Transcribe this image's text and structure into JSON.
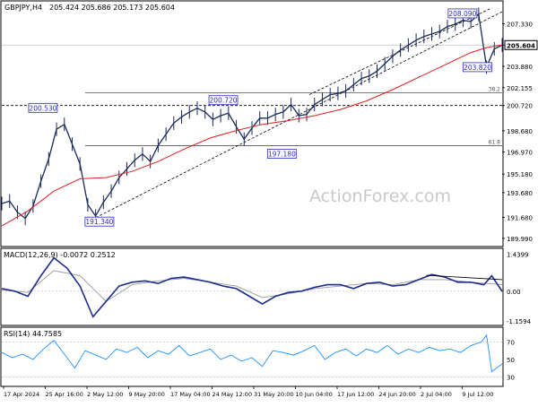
{
  "chart_data": {
    "type": "candlestick",
    "symbol_label": "GBPJPY,H4",
    "ohlc_text": "205.424 205.686 205.173 205.604",
    "watermark": "ActionForex.com",
    "price_axis": {
      "range": [
        189.4,
        209.1
      ],
      "ticks": [
        "207.330",
        "205.604",
        "203.880",
        "202.155",
        "200.720",
        "198.680",
        "196.970",
        "195.180",
        "193.680",
        "191.680",
        "189.990"
      ]
    },
    "time_axis": {
      "labels": [
        "17 Apr 2024",
        "25 Apr 16:00",
        "2 May 12:00",
        "9 May 20:00",
        "17 May 04:00",
        "24 May 12:00",
        "31 May 20:00",
        "10 Jun 04:00",
        "17 Jun 12:00",
        "24 Jun 20:00",
        "2 Jul 04:00",
        "9 Jul 12:00"
      ]
    },
    "price_series": {
      "x": [
        0,
        3,
        6,
        9,
        12,
        15,
        18,
        21,
        24,
        27,
        30,
        33,
        36,
        39,
        42,
        45,
        48,
        51,
        54,
        57,
        60,
        63,
        66,
        69,
        72,
        75,
        78,
        81,
        84,
        87,
        90,
        93,
        96,
        99,
        102,
        105,
        108,
        111,
        114,
        117,
        120,
        123,
        126,
        129,
        132,
        135,
        138,
        141,
        144,
        147,
        150,
        153,
        156,
        159,
        162,
        165,
        168,
        171,
        174,
        177,
        180,
        183,
        186,
        189,
        192
      ],
      "close": [
        192.8,
        193.0,
        192.1,
        191.6,
        192.6,
        194.6,
        196.4,
        198.8,
        199.2,
        197.6,
        196.0,
        192.7,
        191.8,
        192.9,
        193.8,
        194.9,
        195.6,
        196.3,
        196.8,
        196.2,
        197.5,
        198.4,
        199.3,
        199.8,
        200.2,
        200.5,
        200.2,
        199.6,
        199.9,
        200.1,
        199.0,
        198.0,
        198.9,
        199.7,
        199.7,
        200.0,
        200.2,
        200.8,
        199.9,
        200.0,
        200.8,
        201.2,
        201.6,
        201.7,
        201.9,
        202.4,
        202.9,
        203.1,
        203.5,
        204.1,
        204.7,
        205.2,
        205.6,
        206.0,
        206.3,
        206.5,
        206.7,
        207.1,
        207.3,
        207.6,
        207.5,
        208.09,
        203.82,
        205.3,
        205.604
      ]
    },
    "moving_average": {
      "x": [
        0,
        10,
        20,
        30,
        40,
        50,
        60,
        70,
        80,
        90,
        100,
        110,
        120,
        130,
        140,
        150,
        160,
        170,
        180,
        186,
        190,
        192
      ],
      "values": [
        191.0,
        192.2,
        193.8,
        194.8,
        194.9,
        195.4,
        196.2,
        197.2,
        198.1,
        198.7,
        199.2,
        199.5,
        199.9,
        200.4,
        201.1,
        202.0,
        203.0,
        204.0,
        205.0,
        205.4,
        205.55,
        205.6
      ]
    },
    "annotations": [
      {
        "label": "208.090",
        "x": 183,
        "price": 208.09
      },
      {
        "label": "203.820",
        "x": 186,
        "price": 203.82
      },
      {
        "label": "200.530",
        "x": 22,
        "price": 200.53
      },
      {
        "label": "200.720",
        "x": 85,
        "price": 200.72
      },
      {
        "label": "197.180",
        "x": 103,
        "price": 197.18
      },
      {
        "label": "191.340",
        "x": 33,
        "price": 191.34
      }
    ],
    "horizontal_lines": [
      {
        "label": "38.2",
        "price": 201.76,
        "style": "solid"
      },
      {
        "label": "61.8",
        "price": 197.48,
        "style": "solid"
      },
      {
        "label": "200.720",
        "price": 200.72,
        "style": "dashed"
      },
      {
        "label": "205.604",
        "price": 205.604,
        "style": "current"
      }
    ],
    "channel": {
      "lower": [
        [
          33,
          191.34
        ],
        [
          192,
          208.3
        ]
      ],
      "upper": [
        [
          118,
          201.6
        ],
        [
          188,
          208.6
        ]
      ]
    },
    "macd": {
      "label": "MACD(12,26,9) -0.0072 0.2512",
      "range": [
        -1.3,
        1.6
      ],
      "ticks": [
        "1.4399",
        "0.00",
        "-1.1594"
      ],
      "macd_x": [
        0,
        5,
        10,
        15,
        20,
        25,
        30,
        35,
        40,
        45,
        50,
        55,
        60,
        65,
        70,
        75,
        80,
        85,
        90,
        95,
        100,
        105,
        110,
        115,
        120,
        125,
        130,
        135,
        140,
        145,
        150,
        155,
        160,
        165,
        170,
        175,
        180,
        185,
        188,
        192
      ],
      "macd_values": [
        0.1,
        0.0,
        -0.2,
        0.6,
        1.3,
        0.9,
        0.2,
        -1.0,
        -0.4,
        0.2,
        0.35,
        0.4,
        0.3,
        0.5,
        0.55,
        0.45,
        0.35,
        0.2,
        0.1,
        -0.2,
        -0.5,
        -0.2,
        -0.05,
        0.0,
        0.15,
        0.25,
        0.25,
        0.1,
        0.3,
        0.35,
        0.2,
        0.25,
        0.45,
        0.65,
        0.55,
        0.35,
        0.35,
        0.25,
        0.6,
        -0.0072
      ],
      "signal_x": [
        0,
        10,
        20,
        30,
        40,
        50,
        60,
        70,
        80,
        90,
        100,
        110,
        120,
        130,
        140,
        150,
        160,
        170,
        180,
        192
      ],
      "signal_values": [
        0.05,
        -0.05,
        0.8,
        0.6,
        -0.4,
        0.25,
        0.4,
        0.5,
        0.35,
        0.2,
        -0.25,
        -0.1,
        0.1,
        0.2,
        0.3,
        0.25,
        0.45,
        0.45,
        0.35,
        0.2512
      ],
      "divergence_line": [
        [
          163,
          0.62
        ],
        [
          192,
          0.45
        ]
      ]
    },
    "rsi": {
      "label": "RSI(14) 44.7585",
      "range": [
        20,
        85
      ],
      "ticks": [
        "70",
        "50",
        "30"
      ],
      "x": [
        0,
        4,
        8,
        12,
        16,
        20,
        24,
        28,
        32,
        36,
        40,
        44,
        48,
        52,
        56,
        60,
        64,
        68,
        72,
        76,
        80,
        84,
        88,
        92,
        96,
        100,
        104,
        108,
        112,
        116,
        120,
        124,
        128,
        132,
        136,
        140,
        144,
        148,
        152,
        156,
        160,
        164,
        168,
        172,
        176,
        180,
        184,
        186,
        188,
        192
      ],
      "values": [
        58,
        52,
        56,
        50,
        62,
        72,
        56,
        40,
        60,
        55,
        50,
        62,
        58,
        64,
        52,
        60,
        56,
        66,
        54,
        58,
        62,
        50,
        55,
        48,
        52,
        42,
        60,
        58,
        55,
        60,
        66,
        50,
        58,
        62,
        54,
        62,
        58,
        66,
        56,
        62,
        58,
        64,
        60,
        62,
        58,
        66,
        70,
        78,
        36,
        44.7585
      ]
    }
  }
}
